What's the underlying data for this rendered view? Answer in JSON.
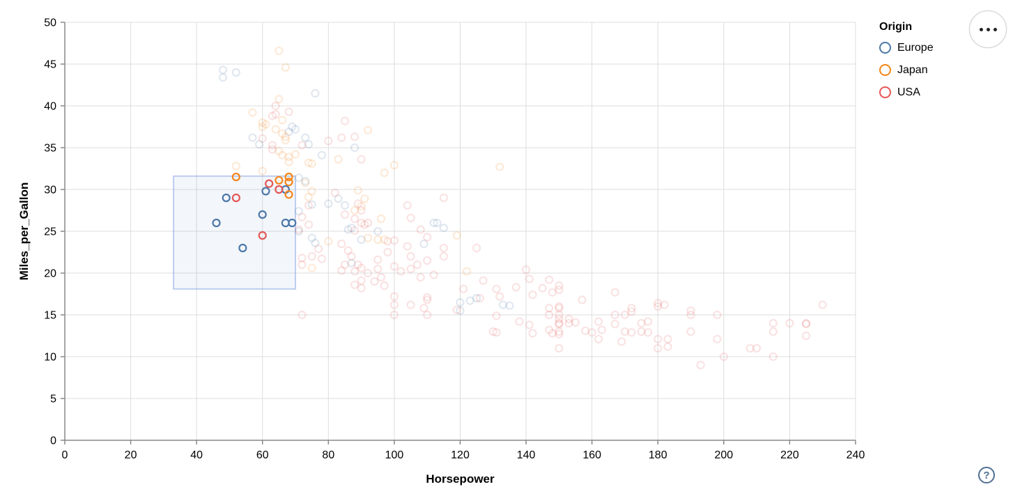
{
  "chart_data": {
    "type": "scatter",
    "title": "",
    "xlabel": "Horsepower",
    "ylabel": "Miles_per_Gallon",
    "xlim": [
      0,
      240
    ],
    "ylim": [
      0,
      50
    ],
    "xticks": [
      0,
      20,
      40,
      60,
      80,
      100,
      120,
      140,
      160,
      180,
      200,
      220,
      240
    ],
    "yticks": [
      0,
      5,
      10,
      15,
      20,
      25,
      30,
      35,
      40,
      45,
      50
    ],
    "grid": true,
    "grid_color": "#dddddd",
    "axis_color": "#888888",
    "legend_position": "top-right",
    "legend_title": "Origin",
    "legend_entries": [
      {
        "label": "Europe",
        "color": "#4c78a8"
      },
      {
        "label": "Japan",
        "color": "#f58518"
      },
      {
        "label": "USA",
        "color": "#e45756"
      }
    ],
    "brush_selection": {
      "hp_min": 33,
      "hp_max": 70,
      "mpg_min": 18.1,
      "mpg_max": 31.6,
      "fill": "rgba(100,140,210,0.08)",
      "stroke": "rgba(140,168,225,0.55)"
    },
    "unselected_opacity": 0.17,
    "point_radius": 5,
    "point_stroke_width": 2.2,
    "series_key": {
      "E": "Europe",
      "J": "Japan",
      "U": "USA"
    },
    "points": [
      [
        46,
        26,
        "E"
      ],
      [
        49,
        29,
        "E"
      ],
      [
        54,
        23,
        "E"
      ],
      [
        60,
        27,
        "E"
      ],
      [
        61,
        29.8,
        "E"
      ],
      [
        67,
        30,
        "E"
      ],
      [
        67,
        26,
        "E"
      ],
      [
        69,
        26,
        "E"
      ],
      [
        48,
        43.4,
        "E"
      ],
      [
        48,
        44.3,
        "E"
      ],
      [
        52,
        44,
        "E"
      ],
      [
        76,
        41.5,
        "E"
      ],
      [
        69,
        37.5,
        "E"
      ],
      [
        70,
        37.2,
        "E"
      ],
      [
        68,
        36.9,
        "E"
      ],
      [
        57,
        36.2,
        "E"
      ],
      [
        59,
        35.4,
        "E"
      ],
      [
        73,
        36.2,
        "E"
      ],
      [
        74,
        35.4,
        "E"
      ],
      [
        88,
        35,
        "E"
      ],
      [
        78,
        34.1,
        "E"
      ],
      [
        71,
        31.4,
        "E"
      ],
      [
        73,
        31,
        "E"
      ],
      [
        71,
        27.4,
        "E"
      ],
      [
        71,
        25,
        "E"
      ],
      [
        75,
        28.2,
        "E"
      ],
      [
        80,
        28.3,
        "E"
      ],
      [
        83,
        28.9,
        "E"
      ],
      [
        85,
        28.1,
        "E"
      ],
      [
        87,
        25.4,
        "E"
      ],
      [
        86,
        25.2,
        "E"
      ],
      [
        87,
        21.2,
        "E"
      ],
      [
        75,
        24.2,
        "E"
      ],
      [
        76,
        23.6,
        "E"
      ],
      [
        90,
        24,
        "E"
      ],
      [
        95,
        25,
        "E"
      ],
      [
        113,
        26,
        "E"
      ],
      [
        112,
        26,
        "E"
      ],
      [
        115,
        25.4,
        "E"
      ],
      [
        109,
        23.5,
        "E"
      ],
      [
        120,
        16.5,
        "E"
      ],
      [
        125,
        17,
        "E"
      ],
      [
        133,
        16.2,
        "E"
      ],
      [
        135,
        16.1,
        "E"
      ],
      [
        123,
        16.7,
        "E"
      ],
      [
        120,
        15.5,
        "E"
      ],
      [
        52,
        31.5,
        "J"
      ],
      [
        65,
        31.1,
        "J"
      ],
      [
        68,
        31.5,
        "J"
      ],
      [
        68,
        30.9,
        "J"
      ],
      [
        68,
        29.4,
        "J"
      ],
      [
        65,
        46.6,
        "J"
      ],
      [
        67,
        44.6,
        "J"
      ],
      [
        65,
        40.8,
        "J"
      ],
      [
        92,
        37.1,
        "J"
      ],
      [
        60,
        38,
        "J"
      ],
      [
        61,
        37.8,
        "J"
      ],
      [
        60,
        37.5,
        "J"
      ],
      [
        57,
        39.2,
        "J"
      ],
      [
        66,
        38.3,
        "J"
      ],
      [
        64,
        37.2,
        "J"
      ],
      [
        66,
        36.7,
        "J"
      ],
      [
        67,
        36.3,
        "J"
      ],
      [
        67,
        35.9,
        "J"
      ],
      [
        65,
        34.6,
        "J"
      ],
      [
        66,
        34.1,
        "J"
      ],
      [
        68,
        33.9,
        "J"
      ],
      [
        70,
        34.2,
        "J"
      ],
      [
        68,
        33.3,
        "J"
      ],
      [
        52,
        32.8,
        "J"
      ],
      [
        60,
        32.2,
        "J"
      ],
      [
        74,
        33.2,
        "J"
      ],
      [
        75,
        33.1,
        "J"
      ],
      [
        83,
        33.6,
        "J"
      ],
      [
        73,
        30.8,
        "J"
      ],
      [
        74,
        29.1,
        "J"
      ],
      [
        75,
        29.8,
        "J"
      ],
      [
        89,
        29.9,
        "J"
      ],
      [
        91,
        28.9,
        "J"
      ],
      [
        97,
        32,
        "J"
      ],
      [
        100,
        32.9,
        "J"
      ],
      [
        132,
        32.7,
        "J"
      ],
      [
        95,
        24,
        "J"
      ],
      [
        97,
        24,
        "J"
      ],
      [
        88,
        27.5,
        "J"
      ],
      [
        92,
        24.2,
        "J"
      ],
      [
        75,
        20.6,
        "J"
      ],
      [
        80,
        23.8,
        "J"
      ],
      [
        122,
        20.2,
        "J"
      ],
      [
        119,
        24.5,
        "J"
      ],
      [
        96,
        26.5,
        "J"
      ],
      [
        90,
        28,
        "J"
      ],
      [
        52,
        29,
        "U"
      ],
      [
        62,
        30.7,
        "U"
      ],
      [
        65,
        30,
        "U"
      ],
      [
        60,
        24.5,
        "U"
      ],
      [
        64,
        39,
        "U"
      ],
      [
        63,
        38.8,
        "U"
      ],
      [
        68,
        39.3,
        "U"
      ],
      [
        64,
        40,
        "U"
      ],
      [
        63,
        35.3,
        "U"
      ],
      [
        60,
        36.1,
        "U"
      ],
      [
        63,
        34.8,
        "U"
      ],
      [
        72,
        35.3,
        "U"
      ],
      [
        85,
        38.2,
        "U"
      ],
      [
        84,
        36.2,
        "U"
      ],
      [
        80,
        35.8,
        "U"
      ],
      [
        88,
        36.3,
        "U"
      ],
      [
        90,
        33.6,
        "U"
      ],
      [
        82,
        29.6,
        "U"
      ],
      [
        89,
        28.3,
        "U"
      ],
      [
        90,
        27.5,
        "U"
      ],
      [
        88,
        26.5,
        "U"
      ],
      [
        92,
        26,
        "U"
      ],
      [
        91,
        25.8,
        "U"
      ],
      [
        90,
        26,
        "U"
      ],
      [
        88,
        25.1,
        "U"
      ],
      [
        85,
        27,
        "U"
      ],
      [
        74,
        28.1,
        "U"
      ],
      [
        72,
        26.7,
        "U"
      ],
      [
        74,
        25.8,
        "U"
      ],
      [
        71,
        25.2,
        "U"
      ],
      [
        72,
        21.8,
        "U"
      ],
      [
        72,
        21,
        "U"
      ],
      [
        77,
        22.9,
        "U"
      ],
      [
        75,
        22,
        "U"
      ],
      [
        78,
        21.7,
        "U"
      ],
      [
        84,
        23.5,
        "U"
      ],
      [
        86,
        22.7,
        "U"
      ],
      [
        87,
        22,
        "U"
      ],
      [
        89,
        21,
        "U"
      ],
      [
        85,
        21,
        "U"
      ],
      [
        84,
        20.3,
        "U"
      ],
      [
        88,
        20.2,
        "U"
      ],
      [
        90,
        20.6,
        "U"
      ],
      [
        92,
        20,
        "U"
      ],
      [
        94,
        19,
        "U"
      ],
      [
        90,
        19.1,
        "U"
      ],
      [
        88,
        18.6,
        "U"
      ],
      [
        90,
        18.2,
        "U"
      ],
      [
        97,
        18.5,
        "U"
      ],
      [
        95,
        21.6,
        "U"
      ],
      [
        95,
        20.5,
        "U"
      ],
      [
        96,
        19.5,
        "U"
      ],
      [
        98,
        22.5,
        "U"
      ],
      [
        98,
        23.8,
        "U"
      ],
      [
        100,
        23.9,
        "U"
      ],
      [
        104,
        28.1,
        "U"
      ],
      [
        105,
        26.6,
        "U"
      ],
      [
        108,
        25.2,
        "U"
      ],
      [
        110,
        24.3,
        "U"
      ],
      [
        115,
        29,
        "U"
      ],
      [
        115,
        23,
        "U"
      ],
      [
        115,
        22,
        "U"
      ],
      [
        104,
        23.2,
        "U"
      ],
      [
        105,
        22,
        "U"
      ],
      [
        100,
        20.8,
        "U"
      ],
      [
        102,
        20.2,
        "U"
      ],
      [
        105,
        20.5,
        "U"
      ],
      [
        108,
        19.5,
        "U"
      ],
      [
        110,
        21.5,
        "U"
      ],
      [
        107,
        21,
        "U"
      ],
      [
        112,
        19.8,
        "U"
      ],
      [
        100,
        17.2,
        "U"
      ],
      [
        100,
        16.2,
        "U"
      ],
      [
        100,
        15,
        "U"
      ],
      [
        105,
        16.2,
        "U"
      ],
      [
        110,
        17.1,
        "U"
      ],
      [
        110,
        16.8,
        "U"
      ],
      [
        109,
        15.8,
        "U"
      ],
      [
        110,
        15,
        "U"
      ],
      [
        72,
        15,
        "U"
      ],
      [
        119,
        15.6,
        "U"
      ],
      [
        121,
        18.1,
        "U"
      ],
      [
        125,
        23,
        "U"
      ],
      [
        126,
        17,
        "U"
      ],
      [
        127,
        19.1,
        "U"
      ],
      [
        130,
        13,
        "U"
      ],
      [
        131,
        18.1,
        "U"
      ],
      [
        131,
        14.9,
        "U"
      ],
      [
        131,
        12.9,
        "U"
      ],
      [
        132,
        17.2,
        "U"
      ],
      [
        137,
        18.3,
        "U"
      ],
      [
        138,
        14.2,
        "U"
      ],
      [
        140,
        20.4,
        "U"
      ],
      [
        141,
        19.3,
        "U"
      ],
      [
        141,
        13.8,
        "U"
      ],
      [
        142,
        17.4,
        "U"
      ],
      [
        142,
        12.8,
        "U"
      ],
      [
        145,
        18.2,
        "U"
      ],
      [
        147,
        19.2,
        "U"
      ],
      [
        148,
        17.7,
        "U"
      ],
      [
        147,
        15.8,
        "U"
      ],
      [
        147,
        15,
        "U"
      ],
      [
        147,
        13.2,
        "U"
      ],
      [
        148,
        12.8,
        "U"
      ],
      [
        150,
        18.5,
        "U"
      ],
      [
        150,
        18,
        "U"
      ],
      [
        150,
        16,
        "U"
      ],
      [
        150,
        15.8,
        "U"
      ],
      [
        150,
        15,
        "U"
      ],
      [
        150,
        14.5,
        "U"
      ],
      [
        150,
        14,
        "U"
      ],
      [
        150,
        13.9,
        "U"
      ],
      [
        150,
        13,
        "U"
      ],
      [
        150,
        12.7,
        "U"
      ],
      [
        150,
        11,
        "U"
      ],
      [
        153,
        14.5,
        "U"
      ],
      [
        153,
        14,
        "U"
      ],
      [
        155,
        14.1,
        "U"
      ],
      [
        157,
        16.8,
        "U"
      ],
      [
        158,
        13.1,
        "U"
      ],
      [
        160,
        12.9,
        "U"
      ],
      [
        162,
        14.2,
        "U"
      ],
      [
        162,
        12.1,
        "U"
      ],
      [
        163,
        13.2,
        "U"
      ],
      [
        167,
        17.7,
        "U"
      ],
      [
        167,
        15,
        "U"
      ],
      [
        167,
        13.9,
        "U"
      ],
      [
        169,
        11.8,
        "U"
      ],
      [
        170,
        15,
        "U"
      ],
      [
        170,
        13,
        "U"
      ],
      [
        172,
        15.8,
        "U"
      ],
      [
        172,
        15.4,
        "U"
      ],
      [
        172,
        12.9,
        "U"
      ],
      [
        175,
        14,
        "U"
      ],
      [
        175,
        13,
        "U"
      ],
      [
        177,
        14.2,
        "U"
      ],
      [
        177,
        12.9,
        "U"
      ],
      [
        180,
        16.4,
        "U"
      ],
      [
        180,
        16,
        "U"
      ],
      [
        180,
        12.1,
        "U"
      ],
      [
        180,
        11,
        "U"
      ],
      [
        182,
        16.2,
        "U"
      ],
      [
        183,
        12.1,
        "U"
      ],
      [
        183,
        11.2,
        "U"
      ],
      [
        190,
        15.5,
        "U"
      ],
      [
        190,
        15,
        "U"
      ],
      [
        190,
        13,
        "U"
      ],
      [
        193,
        9,
        "U"
      ],
      [
        198,
        15,
        "U"
      ],
      [
        198,
        12.1,
        "U"
      ],
      [
        200,
        10,
        "U"
      ],
      [
        208,
        11,
        "U"
      ],
      [
        210,
        11,
        "U"
      ],
      [
        215,
        14,
        "U"
      ],
      [
        215,
        13,
        "U"
      ],
      [
        215,
        10,
        "U"
      ],
      [
        220,
        14,
        "U"
      ],
      [
        225,
        14,
        "U"
      ],
      [
        225,
        13.9,
        "U"
      ],
      [
        225,
        12.5,
        "U"
      ],
      [
        230,
        16.2,
        "U"
      ]
    ]
  },
  "legend": {
    "title": "Origin",
    "items": [
      {
        "label": "Europe",
        "color": "#4c78a8"
      },
      {
        "label": "Japan",
        "color": "#f58518"
      },
      {
        "label": "USA",
        "color": "#e45756"
      }
    ]
  },
  "axes": {
    "x_title": "Horsepower",
    "y_title": "Miles_per_Gallon"
  },
  "buttons": {
    "actions_icon": "ellipsis-icon",
    "help_label": "?"
  }
}
